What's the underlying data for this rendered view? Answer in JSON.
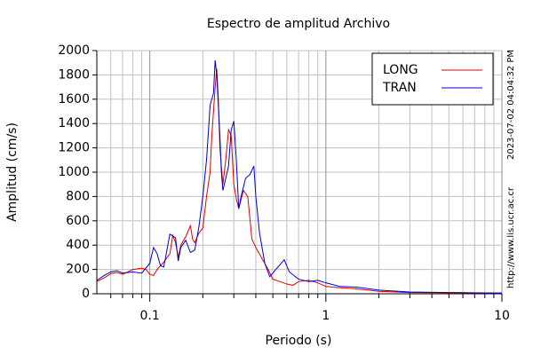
{
  "chart_data": {
    "type": "line",
    "title": "Espectro de amplitud Archivo",
    "x_label": "Periodo (s)",
    "y_label": "Amplitud (cm/s)",
    "annotations": [
      "2023-07-02 04:04:32 PM",
      "http://www.lis.ucr.ac.cr"
    ],
    "x_scale": "log",
    "grid": true,
    "legend": "upper right",
    "xlim": [
      0.05,
      10
    ],
    "ylim": [
      0,
      2000
    ],
    "xticks": [
      0.1,
      1,
      10
    ],
    "xminorticks": [
      0.06,
      0.07,
      0.08,
      0.09,
      0.2,
      0.3,
      0.4,
      0.5,
      0.6,
      0.7,
      0.8,
      0.9,
      2,
      3,
      4,
      5,
      6,
      7,
      8,
      9
    ],
    "yticks": [
      0,
      200,
      400,
      600,
      800,
      1000,
      1200,
      1400,
      1600,
      1800,
      2000
    ],
    "series": [
      {
        "name": "LONG",
        "color": "#dd0000",
        "x": [
          0.05,
          0.055,
          0.06,
          0.065,
          0.07,
          0.075,
          0.08,
          0.09,
          0.095,
          0.1,
          0.105,
          0.11,
          0.12,
          0.13,
          0.135,
          0.14,
          0.145,
          0.15,
          0.16,
          0.17,
          0.175,
          0.18,
          0.19,
          0.2,
          0.21,
          0.22,
          0.225,
          0.23,
          0.235,
          0.24,
          0.245,
          0.25,
          0.26,
          0.27,
          0.28,
          0.29,
          0.3,
          0.31,
          0.32,
          0.34,
          0.36,
          0.38,
          0.4,
          0.43,
          0.47,
          0.5,
          0.55,
          0.6,
          0.65,
          0.7,
          0.8,
          0.9,
          1,
          1.2,
          1.5,
          2,
          3,
          5,
          10
        ],
        "values": [
          100,
          130,
          165,
          175,
          160,
          180,
          200,
          210,
          200,
          160,
          150,
          200,
          260,
          330,
          480,
          420,
          300,
          400,
          470,
          560,
          450,
          420,
          500,
          540,
          800,
          1000,
          1300,
          1500,
          1700,
          1850,
          1600,
          1200,
          900,
          1100,
          1350,
          1300,
          900,
          780,
          700,
          850,
          800,
          450,
          380,
          300,
          200,
          120,
          100,
          80,
          70,
          100,
          110,
          90,
          60,
          50,
          40,
          20,
          10,
          8,
          5
        ]
      },
      {
        "name": "TRAN",
        "color": "#0000cc",
        "x": [
          0.05,
          0.055,
          0.06,
          0.065,
          0.07,
          0.08,
          0.09,
          0.1,
          0.105,
          0.11,
          0.115,
          0.12,
          0.13,
          0.14,
          0.145,
          0.15,
          0.16,
          0.17,
          0.18,
          0.19,
          0.2,
          0.21,
          0.22,
          0.23,
          0.235,
          0.24,
          0.25,
          0.255,
          0.26,
          0.27,
          0.28,
          0.29,
          0.3,
          0.31,
          0.32,
          0.33,
          0.35,
          0.37,
          0.39,
          0.4,
          0.42,
          0.45,
          0.48,
          0.52,
          0.58,
          0.62,
          0.7,
          0.8,
          0.9,
          1,
          1.2,
          1.5,
          2,
          3,
          5,
          10
        ],
        "values": [
          110,
          150,
          180,
          190,
          170,
          180,
          170,
          250,
          380,
          330,
          230,
          220,
          490,
          460,
          270,
          380,
          440,
          340,
          360,
          550,
          800,
          1100,
          1550,
          1650,
          1920,
          1800,
          1300,
          1000,
          850,
          950,
          1050,
          1350,
          1420,
          1100,
          700,
          800,
          950,
          980,
          1050,
          800,
          500,
          250,
          140,
          200,
          280,
          180,
          120,
          100,
          110,
          90,
          60,
          55,
          30,
          15,
          10,
          5
        ]
      }
    ]
  }
}
